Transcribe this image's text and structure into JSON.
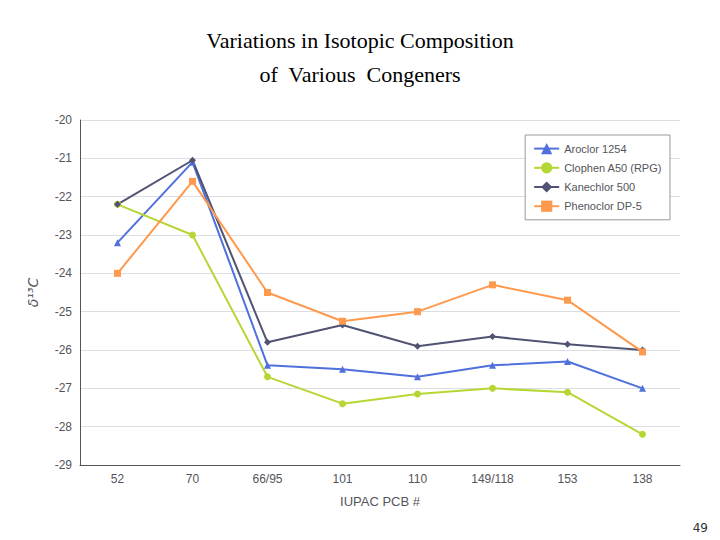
{
  "chart_data": {
    "type": "line",
    "title": "Variations in Isotopic Composition\nof  Various  Congeners",
    "x_label": "IUPAC PCB #",
    "y_label": "δ¹³C",
    "categories": [
      "52",
      "70",
      "66/95",
      "101",
      "110",
      "149/118",
      "153",
      "138"
    ],
    "series": [
      {
        "name": "Aroclor 1254",
        "marker": "triangle",
        "values": [
          -23.2,
          -21.1,
          -26.4,
          -26.5,
          -26.7,
          -26.4,
          -26.3,
          -27.0
        ]
      },
      {
        "name": "Clophen A50 (RPG)",
        "marker": "circle",
        "values": [
          -22.2,
          -23.0,
          -26.7,
          -27.4,
          -27.15,
          -27.0,
          -27.1,
          -28.2
        ]
      },
      {
        "name": "Kanechlor 500",
        "marker": "diamond",
        "values": [
          -22.2,
          -21.05,
          -25.8,
          -25.35,
          -25.9,
          -25.65,
          -25.85,
          -26.0
        ]
      },
      {
        "name": "Phenoclor DP-5",
        "marker": "square",
        "values": [
          -24.0,
          -21.6,
          -24.5,
          -25.25,
          -25.0,
          -24.3,
          -24.7,
          -26.05
        ]
      }
    ],
    "ylim": [
      -29,
      -20
    ],
    "yticks": [
      -29,
      -28,
      -27,
      -26,
      -25,
      -24,
      -23,
      -22,
      -21,
      -20
    ],
    "grid": true,
    "legend": "upper right",
    "annotations": [
      "49"
    ]
  }
}
